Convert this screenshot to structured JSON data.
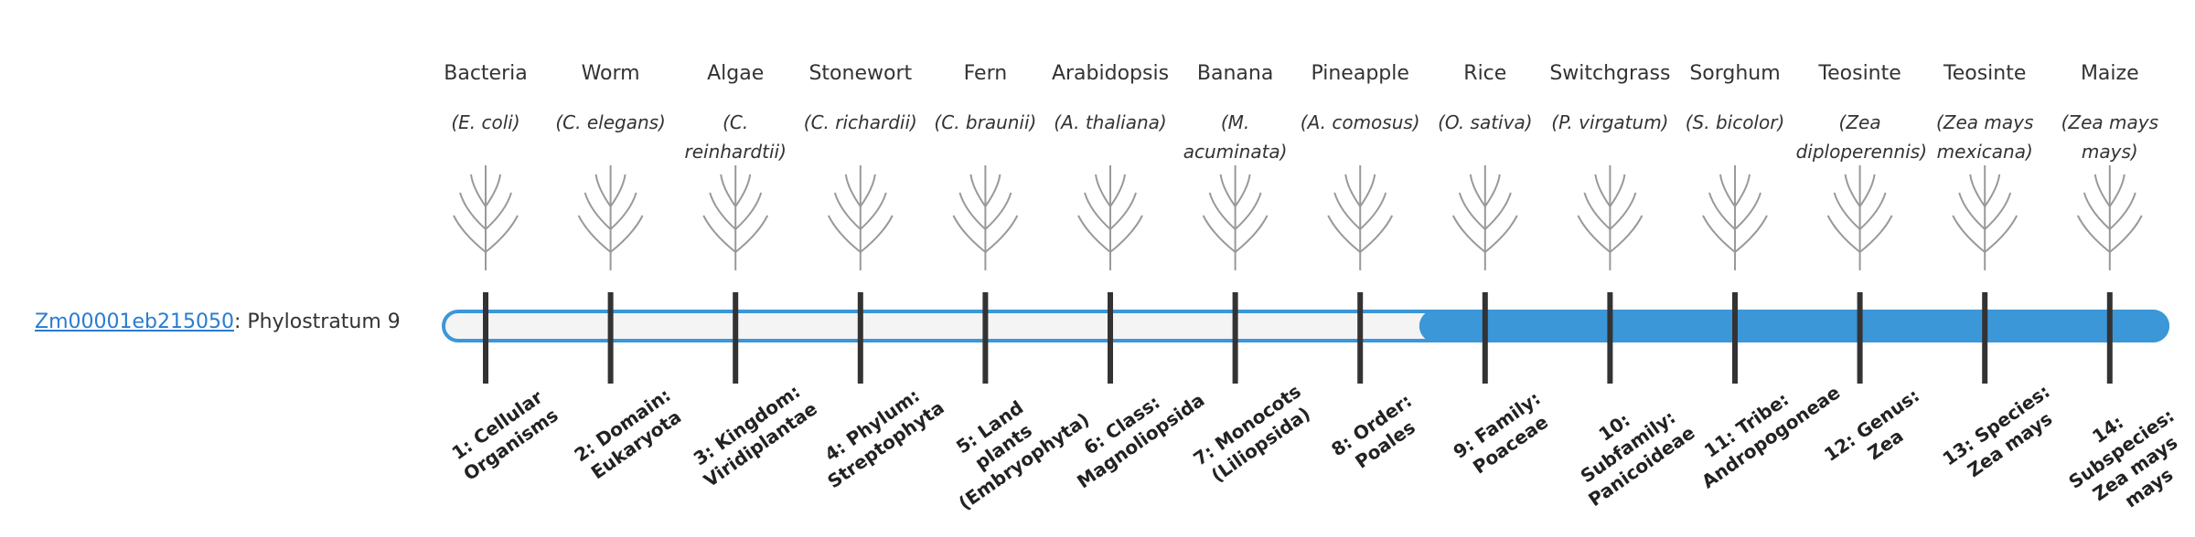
{
  "gene": {
    "id": "Zm00001eb215050",
    "label": ": Phylostratum 9",
    "phylostratum": 9
  },
  "strata": [
    {
      "organism": "Bacteria",
      "species": "(E. coli)",
      "rank": "1: Cellular Organisms"
    },
    {
      "organism": "Worm",
      "species": "(C. elegans)",
      "rank": "2: Domain: Eukaryota"
    },
    {
      "organism": "Algae",
      "species": "(C. reinhardtii)",
      "rank": "3: Kingdom: Viridiplantae"
    },
    {
      "organism": "Stonewort",
      "species": "(C. richardii)",
      "rank": "4: Phylum: Streptophyta"
    },
    {
      "organism": "Fern",
      "species": "(C. braunii)",
      "rank": "5: Land plants (Embryophyta)"
    },
    {
      "organism": "Arabidopsis",
      "species": "(A. thaliana)",
      "rank": "6: Class: Magnoliopsida"
    },
    {
      "organism": "Banana",
      "species": "(M. acuminata)",
      "rank": "7: Monocots (Liliopsida)"
    },
    {
      "organism": "Pineapple",
      "species": "(A. comosus)",
      "rank": "8: Order: Poales"
    },
    {
      "organism": "Rice",
      "species": "(O. sativa)",
      "rank": "9: Family: Poaceae"
    },
    {
      "organism": "Switchgrass",
      "species": "(P. virgatum)",
      "rank": "10: Subfamily: Panicoideae"
    },
    {
      "organism": "Sorghum",
      "species": "(S. bicolor)",
      "rank": "11: Tribe: Andropogoneae"
    },
    {
      "organism": "Teosinte",
      "species": "(Zea diploperennis)",
      "rank": "12: Genus: Zea"
    },
    {
      "organism": "Teosinte",
      "species": "(Zea mays mexicana)",
      "rank": "13: Species: Zea mays"
    },
    {
      "organism": "Maize",
      "species": "(Zea mays mays)",
      "rank": "14: Subspecies: Zea mays mays"
    }
  ]
}
